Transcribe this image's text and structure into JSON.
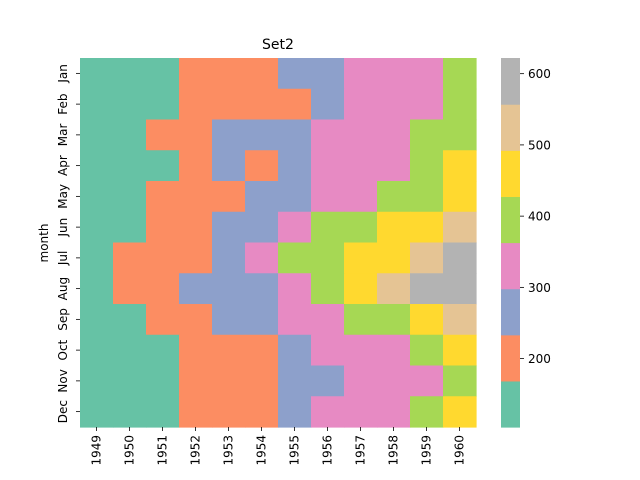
{
  "chart_data": {
    "type": "heatmap",
    "title": "Set2",
    "xlabel": "",
    "ylabel": "month",
    "years": [
      "1949",
      "1950",
      "1951",
      "1952",
      "1953",
      "1954",
      "1955",
      "1956",
      "1957",
      "1958",
      "1959",
      "1960"
    ],
    "months": [
      "Jan",
      "Feb",
      "Mar",
      "Apr",
      "May",
      "Jun",
      "Jul",
      "Aug",
      "Sep",
      "Oct",
      "Nov",
      "Dec"
    ],
    "values": [
      [
        112,
        115,
        145,
        171,
        196,
        204,
        242,
        284,
        315,
        340,
        360,
        417
      ],
      [
        118,
        126,
        150,
        180,
        196,
        188,
        233,
        277,
        301,
        318,
        342,
        391
      ],
      [
        132,
        141,
        178,
        193,
        236,
        235,
        267,
        317,
        356,
        362,
        406,
        419
      ],
      [
        129,
        135,
        163,
        181,
        235,
        227,
        269,
        313,
        348,
        348,
        396,
        461
      ],
      [
        121,
        125,
        172,
        183,
        229,
        234,
        270,
        318,
        355,
        363,
        420,
        472
      ],
      [
        135,
        149,
        178,
        218,
        243,
        264,
        315,
        374,
        422,
        435,
        472,
        535
      ],
      [
        148,
        170,
        199,
        230,
        264,
        302,
        364,
        413,
        465,
        491,
        548,
        622
      ],
      [
        148,
        170,
        199,
        242,
        272,
        293,
        347,
        405,
        467,
        505,
        559,
        606
      ],
      [
        136,
        158,
        184,
        209,
        237,
        259,
        312,
        355,
        404,
        404,
        463,
        508
      ],
      [
        119,
        133,
        162,
        191,
        211,
        229,
        274,
        306,
        347,
        359,
        407,
        461
      ],
      [
        104,
        114,
        146,
        172,
        180,
        203,
        237,
        271,
        305,
        310,
        362,
        390
      ],
      [
        118,
        140,
        166,
        194,
        201,
        229,
        278,
        306,
        336,
        337,
        405,
        432
      ]
    ],
    "colormap": {
      "name": "Set2",
      "vmin": 104,
      "vmax": 622,
      "colors": [
        "#66c2a5",
        "#fc8d62",
        "#8da0cb",
        "#e78ac3",
        "#a6d854",
        "#ffd92f",
        "#e5c494",
        "#b3b3b3"
      ]
    },
    "colorbar": {
      "ticks": [
        200,
        300,
        400,
        500,
        600
      ],
      "tick_labels": [
        "200",
        "300",
        "400",
        "500",
        "600"
      ]
    }
  }
}
